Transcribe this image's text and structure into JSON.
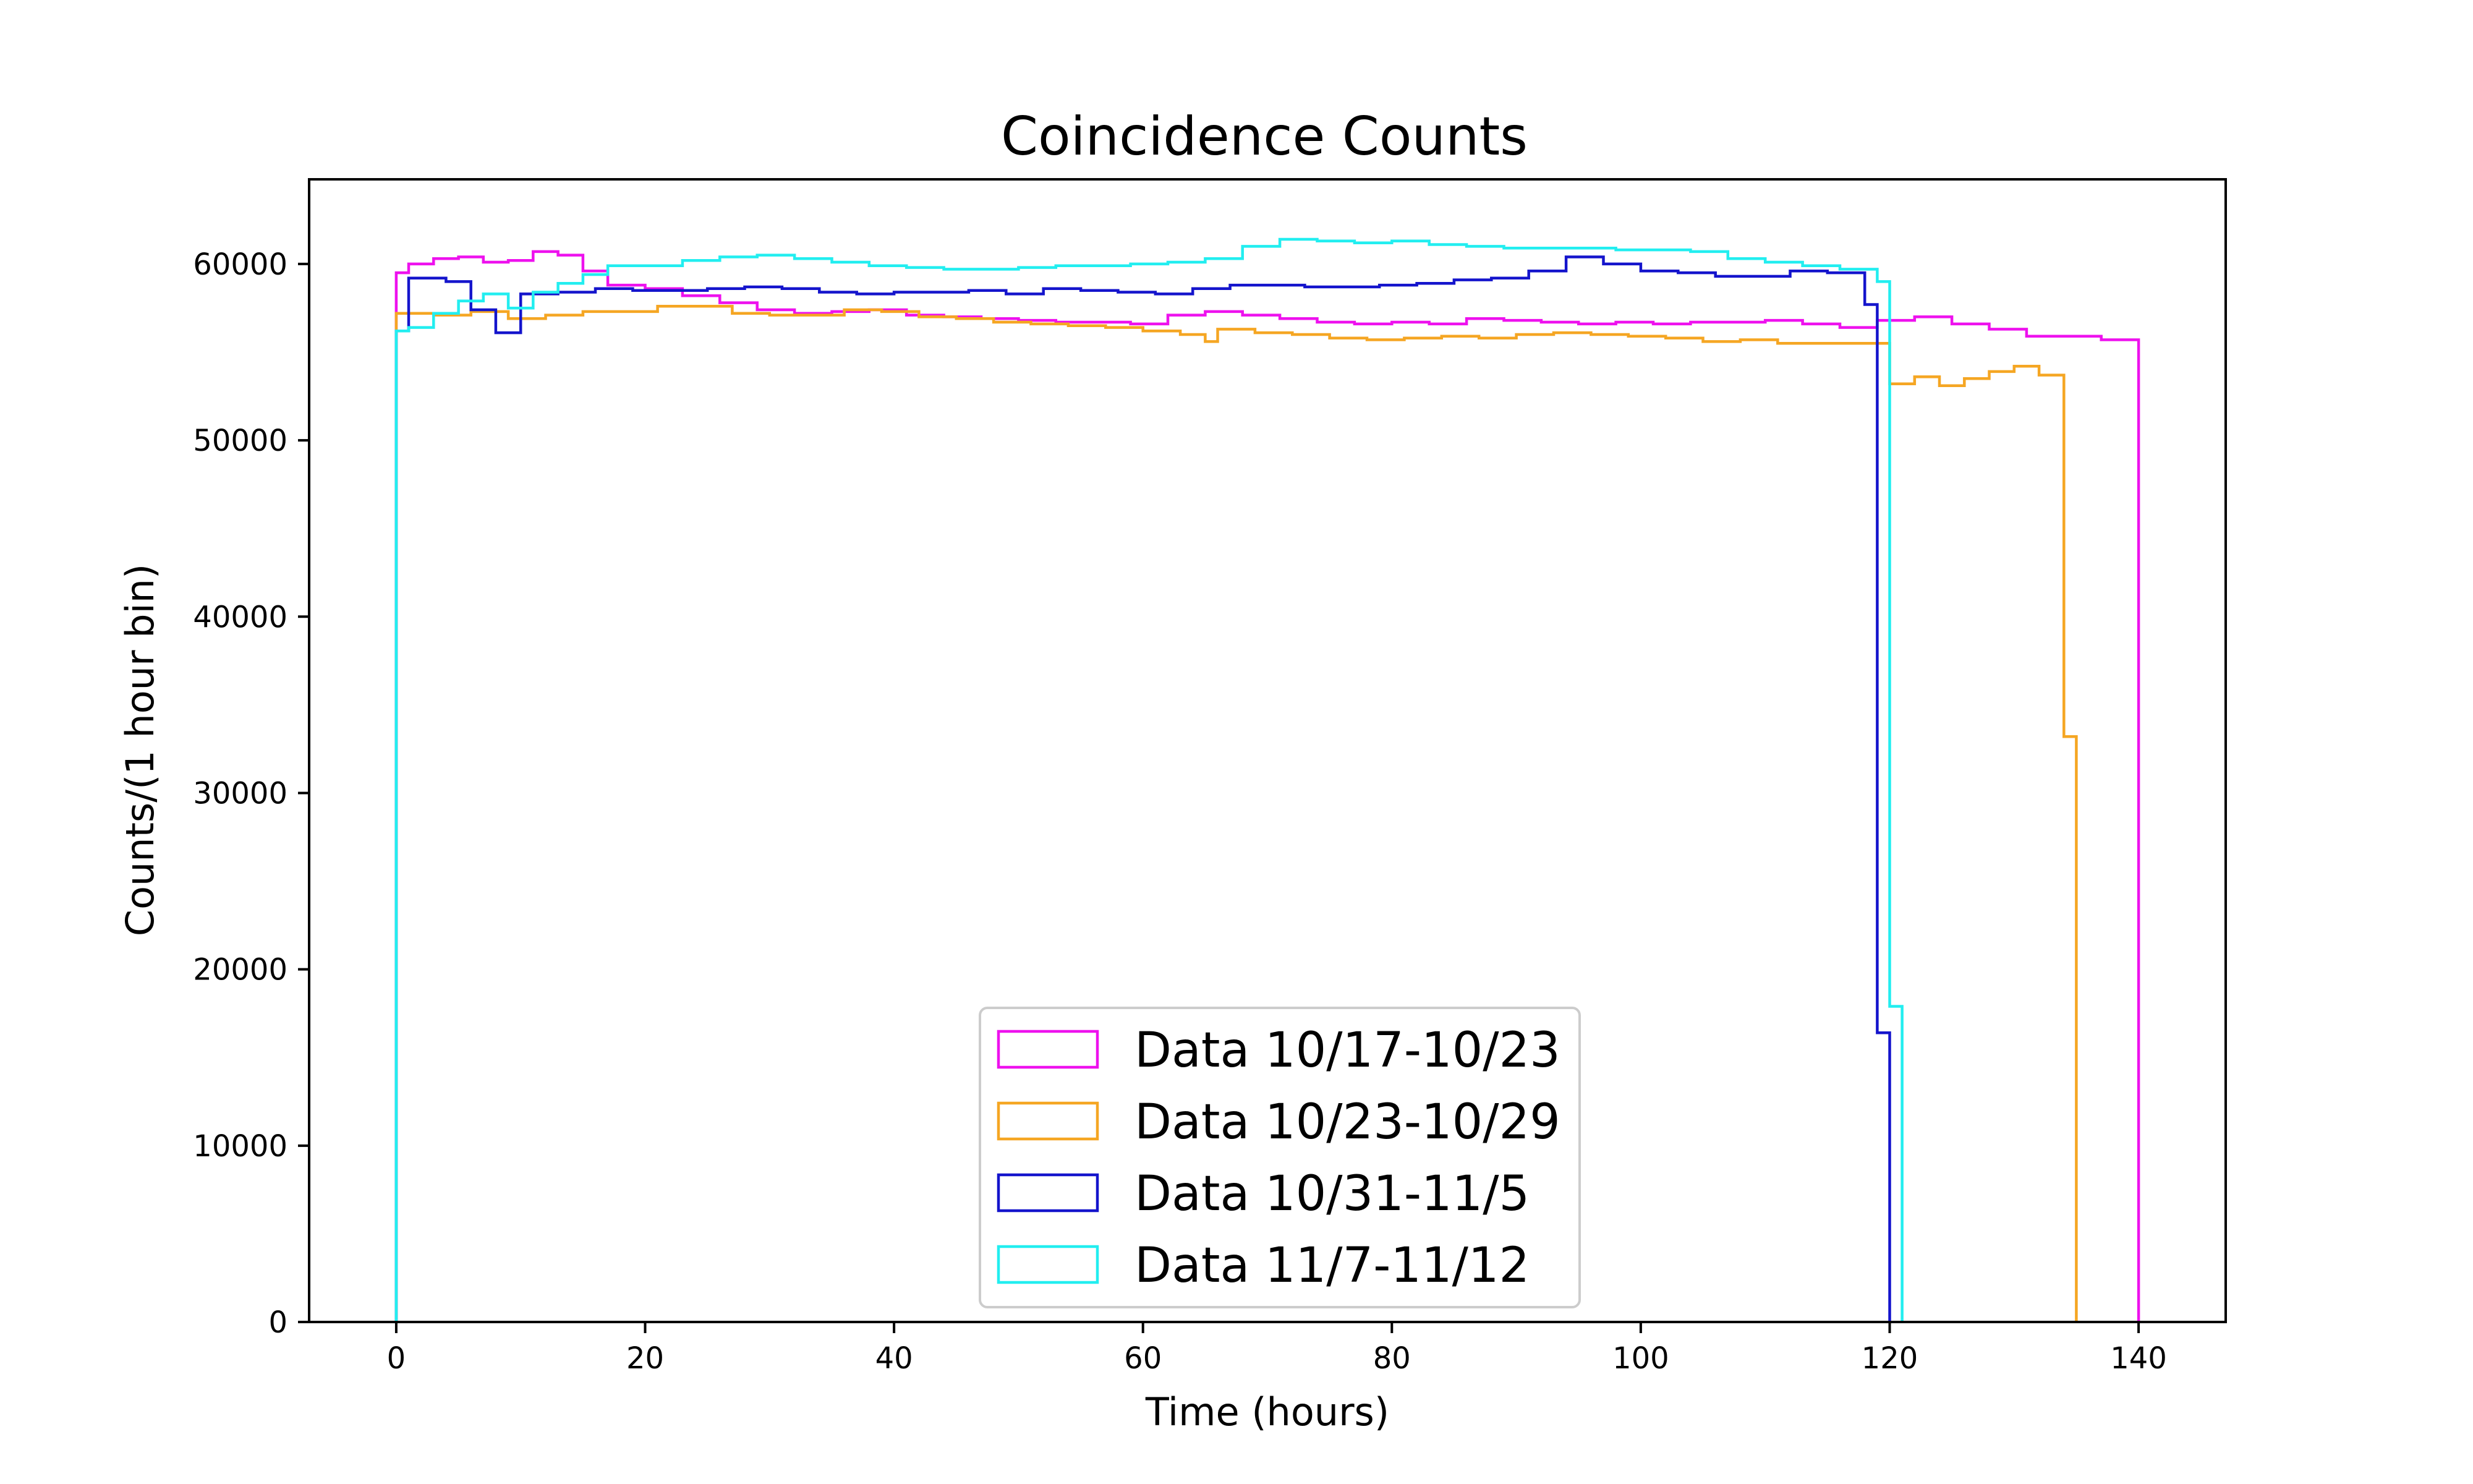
{
  "chart_data": {
    "type": "line",
    "title": "Coincidence Counts",
    "xlabel": "Time (hours)",
    "ylabel": "Counts/(1 hour bin)",
    "xlim": [
      -7,
      147
    ],
    "ylim": [
      0,
      64800
    ],
    "xticks": [
      0,
      20,
      40,
      60,
      80,
      100,
      120,
      140
    ],
    "yticks": [
      0,
      10000,
      20000,
      30000,
      40000,
      50000,
      60000
    ],
    "grid": false,
    "legend_position": "lower center",
    "series": [
      {
        "name": "Data 10/17-10/23",
        "color": "#ee11ee",
        "step": "histogram",
        "points": [
          [
            0,
            59500
          ],
          [
            1,
            60000
          ],
          [
            3,
            60300
          ],
          [
            5,
            60400
          ],
          [
            7,
            60100
          ],
          [
            9,
            60200
          ],
          [
            11,
            60700
          ],
          [
            13,
            60500
          ],
          [
            15,
            59600
          ],
          [
            17,
            58800
          ],
          [
            20,
            58600
          ],
          [
            23,
            58200
          ],
          [
            26,
            57800
          ],
          [
            29,
            57400
          ],
          [
            32,
            57200
          ],
          [
            35,
            57300
          ],
          [
            38,
            57400
          ],
          [
            41,
            57100
          ],
          [
            44,
            57000
          ],
          [
            47,
            56900
          ],
          [
            50,
            56800
          ],
          [
            53,
            56700
          ],
          [
            56,
            56700
          ],
          [
            59,
            56600
          ],
          [
            62,
            57100
          ],
          [
            65,
            57300
          ],
          [
            68,
            57100
          ],
          [
            71,
            56900
          ],
          [
            74,
            56700
          ],
          [
            77,
            56600
          ],
          [
            80,
            56700
          ],
          [
            83,
            56600
          ],
          [
            86,
            56900
          ],
          [
            89,
            56800
          ],
          [
            92,
            56700
          ],
          [
            95,
            56600
          ],
          [
            98,
            56700
          ],
          [
            101,
            56600
          ],
          [
            104,
            56700
          ],
          [
            107,
            56700
          ],
          [
            110,
            56800
          ],
          [
            113,
            56600
          ],
          [
            116,
            56400
          ],
          [
            119,
            56800
          ],
          [
            122,
            57000
          ],
          [
            125,
            56600
          ],
          [
            128,
            56300
          ],
          [
            131,
            55900
          ],
          [
            134,
            55900
          ],
          [
            137,
            55700
          ],
          [
            140,
            0
          ]
        ]
      },
      {
        "name": "Data 10/23-10/29",
        "color": "#f5a623",
        "step": "histogram",
        "points": [
          [
            0,
            57200
          ],
          [
            3,
            57100
          ],
          [
            6,
            57300
          ],
          [
            9,
            56900
          ],
          [
            12,
            57100
          ],
          [
            15,
            57300
          ],
          [
            18,
            57300
          ],
          [
            21,
            57600
          ],
          [
            24,
            57600
          ],
          [
            27,
            57200
          ],
          [
            30,
            57100
          ],
          [
            33,
            57100
          ],
          [
            36,
            57400
          ],
          [
            39,
            57300
          ],
          [
            42,
            57000
          ],
          [
            45,
            56900
          ],
          [
            48,
            56700
          ],
          [
            51,
            56600
          ],
          [
            54,
            56500
          ],
          [
            57,
            56400
          ],
          [
            60,
            56200
          ],
          [
            63,
            56000
          ],
          [
            65,
            55600
          ],
          [
            66,
            56300
          ],
          [
            69,
            56100
          ],
          [
            72,
            56000
          ],
          [
            75,
            55800
          ],
          [
            78,
            55700
          ],
          [
            81,
            55800
          ],
          [
            84,
            55900
          ],
          [
            87,
            55800
          ],
          [
            90,
            56000
          ],
          [
            93,
            56100
          ],
          [
            96,
            56000
          ],
          [
            99,
            55900
          ],
          [
            102,
            55800
          ],
          [
            105,
            55600
          ],
          [
            108,
            55700
          ],
          [
            111,
            55500
          ],
          [
            114,
            55500
          ],
          [
            117,
            55500
          ],
          [
            120,
            53200
          ],
          [
            122,
            53600
          ],
          [
            124,
            53100
          ],
          [
            126,
            53500
          ],
          [
            128,
            53900
          ],
          [
            130,
            54200
          ],
          [
            132,
            53700
          ],
          [
            134,
            33200
          ],
          [
            135,
            0
          ]
        ]
      },
      {
        "name": "Data 10/31-11/5",
        "color": "#1414cc",
        "step": "histogram",
        "points": [
          [
            0,
            56200
          ],
          [
            1,
            59200
          ],
          [
            4,
            59000
          ],
          [
            6,
            57400
          ],
          [
            8,
            56100
          ],
          [
            10,
            58300
          ],
          [
            13,
            58400
          ],
          [
            16,
            58600
          ],
          [
            19,
            58500
          ],
          [
            22,
            58500
          ],
          [
            25,
            58600
          ],
          [
            28,
            58700
          ],
          [
            31,
            58600
          ],
          [
            34,
            58400
          ],
          [
            37,
            58300
          ],
          [
            40,
            58400
          ],
          [
            43,
            58400
          ],
          [
            46,
            58500
          ],
          [
            49,
            58300
          ],
          [
            52,
            58600
          ],
          [
            55,
            58500
          ],
          [
            58,
            58400
          ],
          [
            61,
            58300
          ],
          [
            64,
            58600
          ],
          [
            67,
            58800
          ],
          [
            70,
            58800
          ],
          [
            73,
            58700
          ],
          [
            76,
            58700
          ],
          [
            79,
            58800
          ],
          [
            82,
            58900
          ],
          [
            85,
            59100
          ],
          [
            88,
            59200
          ],
          [
            91,
            59600
          ],
          [
            94,
            60400
          ],
          [
            97,
            60000
          ],
          [
            100,
            59600
          ],
          [
            103,
            59500
          ],
          [
            106,
            59300
          ],
          [
            109,
            59300
          ],
          [
            112,
            59600
          ],
          [
            115,
            59500
          ],
          [
            118,
            57700
          ],
          [
            119,
            16400
          ],
          [
            120,
            0
          ]
        ]
      },
      {
        "name": "Data 11/7-11/12",
        "color": "#22eef0",
        "step": "histogram",
        "points": [
          [
            0,
            56200
          ],
          [
            1,
            56400
          ],
          [
            3,
            57200
          ],
          [
            5,
            57900
          ],
          [
            7,
            58300
          ],
          [
            9,
            57500
          ],
          [
            11,
            58400
          ],
          [
            13,
            58900
          ],
          [
            15,
            59400
          ],
          [
            17,
            59900
          ],
          [
            20,
            59900
          ],
          [
            23,
            60200
          ],
          [
            26,
            60400
          ],
          [
            29,
            60500
          ],
          [
            32,
            60300
          ],
          [
            35,
            60100
          ],
          [
            38,
            59900
          ],
          [
            41,
            59800
          ],
          [
            44,
            59700
          ],
          [
            47,
            59700
          ],
          [
            50,
            59800
          ],
          [
            53,
            59900
          ],
          [
            56,
            59900
          ],
          [
            59,
            60000
          ],
          [
            62,
            60100
          ],
          [
            65,
            60300
          ],
          [
            68,
            61000
          ],
          [
            71,
            61400
          ],
          [
            74,
            61300
          ],
          [
            77,
            61200
          ],
          [
            80,
            61300
          ],
          [
            83,
            61100
          ],
          [
            86,
            61000
          ],
          [
            89,
            60900
          ],
          [
            92,
            60900
          ],
          [
            95,
            60900
          ],
          [
            98,
            60800
          ],
          [
            101,
            60800
          ],
          [
            104,
            60700
          ],
          [
            107,
            60300
          ],
          [
            110,
            60100
          ],
          [
            113,
            59900
          ],
          [
            116,
            59700
          ],
          [
            119,
            59000
          ],
          [
            120,
            17900
          ],
          [
            121,
            0
          ]
        ]
      }
    ]
  }
}
